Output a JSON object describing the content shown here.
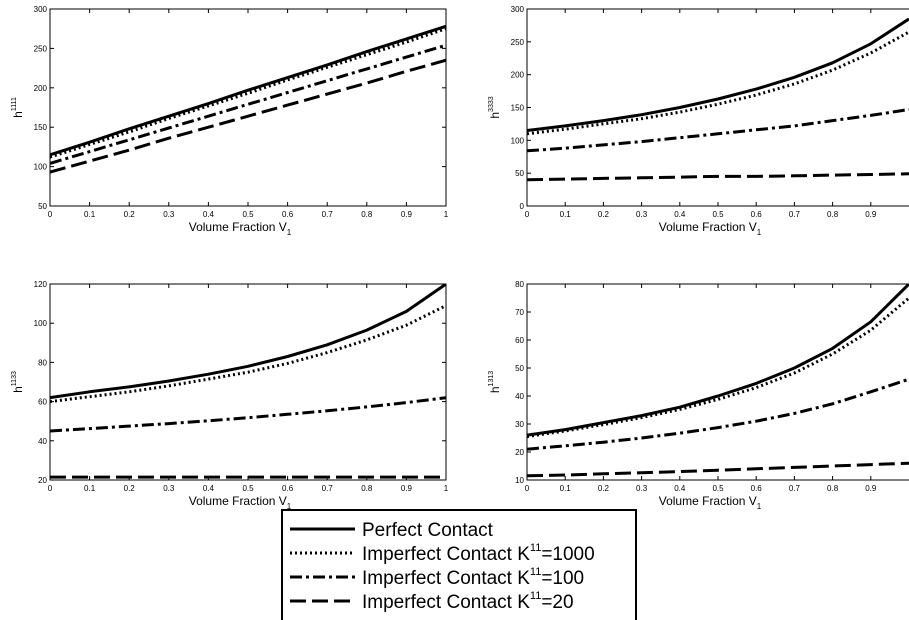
{
  "styles": [
    {
      "name": "solid",
      "dash": "",
      "width": 3
    },
    {
      "name": "dotted",
      "dash": "2 3",
      "width": 3
    },
    {
      "name": "dashdot",
      "dash": "12 4 3 4",
      "width": 3
    },
    {
      "name": "dashed",
      "dash": "16 6",
      "width": 3
    }
  ],
  "legend": {
    "entries": [
      {
        "text": "Perfect Contact",
        "sup": "",
        "tail": ""
      },
      {
        "text": "Imperfect Contact K",
        "sup": "11",
        "tail": "=1000"
      },
      {
        "text": "Imperfect Contact K",
        "sup": "11",
        "tail": "=100"
      },
      {
        "text": "Imperfect Contact K",
        "sup": "11",
        "tail": "=20"
      }
    ]
  },
  "chart_data": [
    {
      "type": "line",
      "xlabel": "Volume Fraction V",
      "xlabel_sub": "1",
      "ylabel": "h",
      "ylabel_sup": "1111",
      "xlim": [
        0,
        1
      ],
      "ylim": [
        50,
        300
      ],
      "xticks": [
        "0",
        "0.1",
        "0.2",
        "0.3",
        "0.4",
        "0.5",
        "0.6",
        "0.7",
        "0.8",
        "0.9",
        "1"
      ],
      "yticks": [
        "50",
        "100",
        "150",
        "200",
        "250",
        "300"
      ],
      "x": [
        0,
        0.1,
        0.2,
        0.3,
        0.4,
        0.5,
        0.6,
        0.7,
        0.8,
        0.9,
        1.0
      ],
      "series": [
        {
          "values": [
            115,
            131,
            148,
            164,
            180,
            197,
            213,
            229,
            246,
            262,
            278
          ]
        },
        {
          "values": [
            112,
            128,
            144,
            161,
            177,
            193,
            210,
            226,
            242,
            258,
            275
          ]
        },
        {
          "values": [
            104,
            119,
            134,
            149,
            164,
            179,
            194,
            209,
            224,
            239,
            254
          ]
        },
        {
          "values": [
            93,
            107,
            121,
            136,
            150,
            164,
            178,
            192,
            206,
            221,
            235
          ]
        }
      ]
    },
    {
      "type": "line",
      "xlabel": "Volume Fraction V",
      "xlabel_sub": "1",
      "ylabel": "h",
      "ylabel_sup": "3333",
      "xlim": [
        0,
        1
      ],
      "ylim": [
        0,
        300
      ],
      "xticks": [
        "0",
        "0.1",
        "0.2",
        "0.3",
        "0.4",
        "0.5",
        "0.6",
        "0.7",
        "0.8",
        "0.9"
      ],
      "yticks": [
        "0",
        "50",
        "100",
        "150",
        "200",
        "250",
        "300"
      ],
      "x": [
        0,
        0.1,
        0.2,
        0.3,
        0.4,
        0.5,
        0.6,
        0.7,
        0.8,
        0.9,
        1.0
      ],
      "series": [
        {
          "values": [
            115,
            122,
            130,
            139,
            150,
            163,
            178,
            196,
            218,
            247,
            285
          ]
        },
        {
          "values": [
            110,
            117,
            125,
            133,
            143,
            155,
            169,
            186,
            207,
            233,
            265
          ]
        },
        {
          "values": [
            84,
            88,
            93,
            98,
            104,
            110,
            116,
            122,
            130,
            138,
            147
          ]
        },
        {
          "values": [
            40,
            41,
            42,
            43,
            44,
            45,
            45,
            46,
            47,
            48,
            49
          ]
        }
      ]
    },
    {
      "type": "line",
      "xlabel": "Volume Fraction V",
      "xlabel_sub": "1",
      "ylabel": "h",
      "ylabel_sup": "1133",
      "xlim": [
        0,
        1
      ],
      "ylim": [
        20,
        120
      ],
      "xticks": [
        "0",
        "0.1",
        "0.2",
        "0.3",
        "0.4",
        "0.5",
        "0.6",
        "0.7",
        "0.8",
        "0.9",
        "1"
      ],
      "yticks": [
        "20",
        "40",
        "60",
        "80",
        "100",
        "120"
      ],
      "x": [
        0,
        0.1,
        0.2,
        0.3,
        0.4,
        0.5,
        0.6,
        0.7,
        0.8,
        0.9,
        1.0
      ],
      "series": [
        {
          "values": [
            62,
            65,
            67.5,
            70.5,
            74,
            78,
            83,
            89,
            96.5,
            106,
            120
          ]
        },
        {
          "values": [
            60,
            62.5,
            65,
            68,
            71.5,
            75,
            79.5,
            85,
            91.5,
            99,
            109
          ]
        },
        {
          "values": [
            45,
            46.2,
            47.5,
            48.8,
            50.2,
            51.8,
            53.5,
            55.3,
            57.3,
            59.5,
            62
          ]
        },
        {
          "values": [
            21.5,
            21.5,
            21.5,
            21.5,
            21.5,
            21.5,
            21.5,
            21.5,
            21.5,
            21.5,
            21.5
          ]
        }
      ]
    },
    {
      "type": "line",
      "xlabel": "Volume Fraction V",
      "xlabel_sub": "1",
      "ylabel": "h",
      "ylabel_sup": "1313",
      "xlim": [
        0,
        1
      ],
      "ylim": [
        10,
        80
      ],
      "xticks": [
        "0",
        "0.1",
        "0.2",
        "0.3",
        "0.4",
        "0.5",
        "0.6",
        "0.7",
        "0.8",
        "0.9"
      ],
      "yticks": [
        "10",
        "20",
        "30",
        "40",
        "50",
        "60",
        "70",
        "80"
      ],
      "x": [
        0,
        0.1,
        0.2,
        0.3,
        0.4,
        0.5,
        0.6,
        0.7,
        0.8,
        0.9,
        1.0
      ],
      "series": [
        {
          "values": [
            26,
            28,
            30.5,
            33,
            36,
            40,
            44.5,
            50,
            57,
            66.5,
            80
          ]
        },
        {
          "values": [
            25.5,
            27.5,
            29.8,
            32.3,
            35.2,
            38.8,
            43,
            48.2,
            55,
            63.5,
            75
          ]
        },
        {
          "values": [
            21,
            22.2,
            23.5,
            25,
            26.7,
            28.7,
            31,
            33.8,
            37.2,
            41.5,
            46
          ]
        },
        {
          "values": [
            11.5,
            11.8,
            12.2,
            12.6,
            13,
            13.5,
            14,
            14.5,
            15,
            15.5,
            16
          ]
        }
      ]
    }
  ]
}
